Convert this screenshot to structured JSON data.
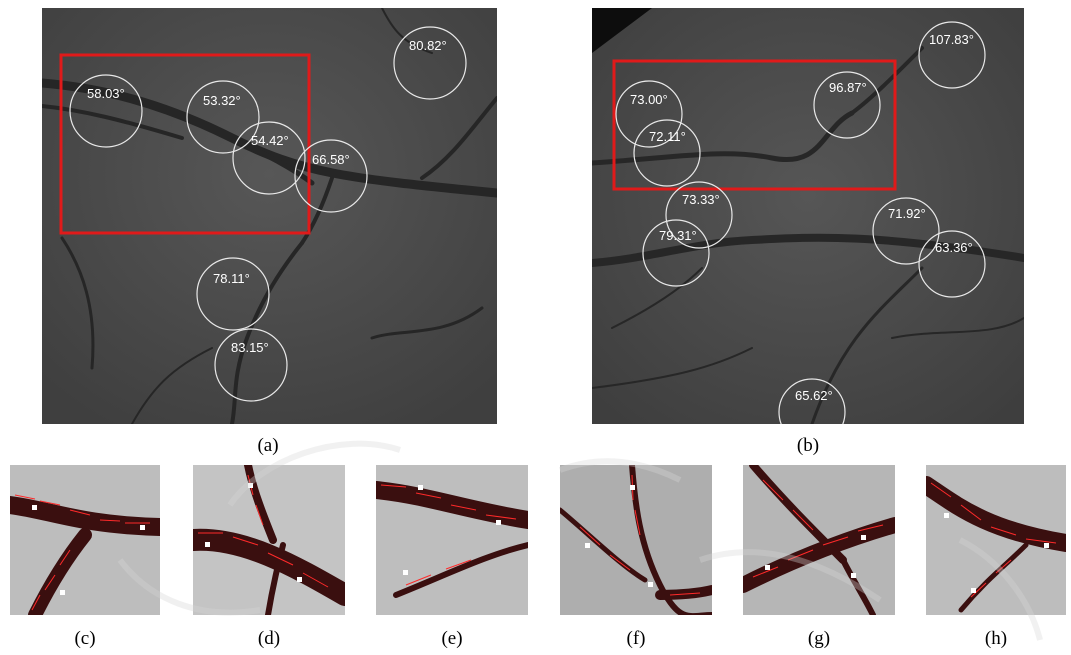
{
  "panels": [
    {
      "caption": "(a)",
      "angles": [
        "58.03°",
        "53.32°",
        "54.42°",
        "66.58°",
        "80.82°",
        "78.11°",
        "83.15°"
      ]
    },
    {
      "caption": "(b)",
      "angles": [
        "73.00°",
        "72.11°",
        "96.87°",
        "107.83°",
        "73.33°",
        "79.31°",
        "71.92°",
        "63.36°",
        "65.62°"
      ]
    }
  ],
  "patches": [
    {
      "caption": "(c)"
    },
    {
      "caption": "(d)"
    },
    {
      "caption": "(e)"
    },
    {
      "caption": "(f)"
    },
    {
      "caption": "(g)"
    },
    {
      "caption": "(h)"
    }
  ],
  "colors": {
    "fundus_background": "#4a4a4a",
    "vessel": "#242424",
    "roi_box": "#e01a1a",
    "circle": "#ffffff",
    "patch_vessel": "#3a0f0f",
    "orientation_marks": "#ff2a2a"
  }
}
